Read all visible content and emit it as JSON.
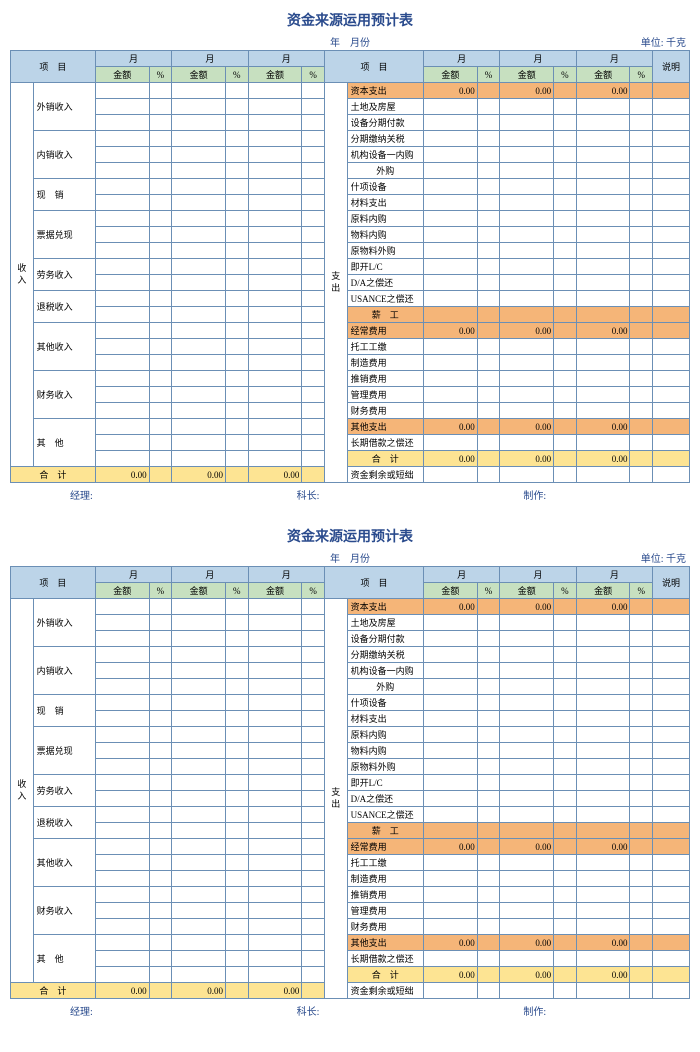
{
  "title": "资金来源运用预计表",
  "subtitle_date": "年　月份",
  "unit": "单位: 千克",
  "col": {
    "proj": "项　目",
    "month": "月",
    "amt": "金额",
    "pct": "%",
    "note": "说明"
  },
  "side": {
    "income": "收入",
    "expend": "支出"
  },
  "income": {
    "r1": "外销收入",
    "r2": "内销收入",
    "r3": "现　销",
    "r4": "票据兑现",
    "r5": "劳务收入",
    "r6": "退税收入",
    "r7": "其他收入",
    "r8": "财务收入",
    "r9": "其　他",
    "total": "合　计"
  },
  "expend": {
    "cap": "资本支出",
    "e1": "土地及房屋",
    "e2": "设备分期付款",
    "e3": "分期缴纳关税",
    "e4": "机构设备一内购",
    "e5": "外购",
    "e6": "什项设备",
    "e7": "材料支出",
    "e8": "原料内购",
    "e9": "物料内购",
    "e10": "原物料外购",
    "e11": "即开L/C",
    "e12": "D/A之偿还",
    "e13": "USANCE之偿还",
    "sal": "薪　工",
    "op": "经常费用",
    "o1": "托工工缴",
    "o2": "制造费用",
    "o3": "推销费用",
    "o4": "管理费用",
    "o5": "财务费用",
    "oth": "其他支出",
    "lt": "长期借款之偿还",
    "total": "合　计",
    "bal": "资金剩余或短绌"
  },
  "zero": "0.00",
  "footer": {
    "m": "经理:",
    "s": "科长:",
    "p": "制作:"
  },
  "widths": {
    "side": 16,
    "proj": 44,
    "amt": 38,
    "pct": 16,
    "proj2": 54,
    "note": 26
  },
  "colors": {
    "hdr": "#bcd4e8",
    "amt": "#c7e0c0",
    "orange": "#f5b578",
    "yellow": "#fde493",
    "border": "#6b8fb5",
    "title": "#2a4b8d"
  }
}
